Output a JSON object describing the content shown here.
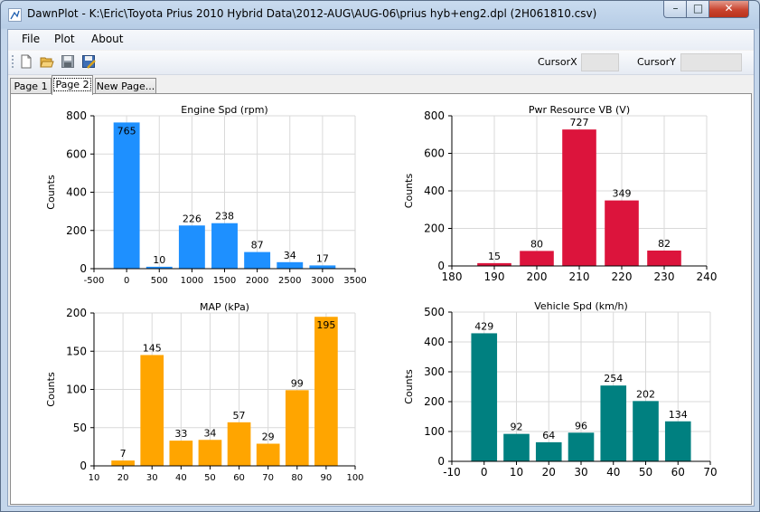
{
  "window": {
    "title": "DawnPlot - K:\\Eric\\Toyota Prius 2010 Hybrid Data\\2012-AUG\\AUG-06\\prius hyb+eng2.dpl (2H061810.csv)",
    "min_glyph": "–",
    "max_glyph": "□",
    "close_glyph": "✕"
  },
  "menu": {
    "file": "File",
    "plot": "Plot",
    "about": "About"
  },
  "toolbar": {
    "icons": [
      "new-file-icon",
      "open-folder-icon",
      "save-disk-icon",
      "save-as-icon"
    ],
    "cursorx_label": "CursorX",
    "cursorx_value": "",
    "cursory_label": "CursorY",
    "cursory_value": ""
  },
  "tabs": {
    "page1": "Page 1",
    "page2": "Page 2",
    "newpage": "New Page...",
    "active": "page2"
  },
  "chart_data": [
    {
      "type": "bar",
      "title": "Engine Spd (rpm)",
      "ylabel": "Counts",
      "color": "#1e90ff",
      "x": [
        0,
        500,
        1000,
        1500,
        2000,
        2500,
        3000
      ],
      "values": [
        765,
        10,
        226,
        238,
        87,
        34,
        17
      ],
      "bar_width": 400,
      "xlim": [
        -500,
        3500
      ],
      "ylim": [
        0,
        800
      ],
      "xticks": [
        -500,
        0,
        500,
        1000,
        1500,
        2000,
        2500,
        3000,
        3500
      ],
      "yticks": [
        0,
        200,
        400,
        600,
        800
      ],
      "grid": true
    },
    {
      "type": "bar",
      "title": "Pwr Resource VB (V)",
      "ylabel": "Counts",
      "color": "#dc143c",
      "x": [
        190,
        200,
        210,
        220,
        230
      ],
      "values": [
        15,
        80,
        727,
        349,
        82
      ],
      "bar_width": 8,
      "xlim": [
        180,
        240
      ],
      "ylim": [
        0,
        800
      ],
      "xticks": [
        180,
        190,
        200,
        210,
        220,
        230,
        240
      ],
      "yticks": [
        0,
        200,
        400,
        600,
        800
      ],
      "grid": true
    },
    {
      "type": "bar",
      "title": "MAP (kPa)",
      "ylabel": "Counts",
      "color": "#ffa500",
      "x": [
        20,
        30,
        40,
        50,
        60,
        70,
        80,
        90
      ],
      "values": [
        7,
        145,
        33,
        34,
        57,
        29,
        99,
        195
      ],
      "bar_width": 8,
      "xlim": [
        10,
        100
      ],
      "ylim": [
        0,
        200
      ],
      "xticks": [
        10,
        20,
        30,
        40,
        50,
        60,
        70,
        80,
        90,
        100
      ],
      "yticks": [
        0,
        50,
        100,
        150,
        200
      ],
      "grid": true
    },
    {
      "type": "bar",
      "title": "Vehicle Spd (km/h)",
      "ylabel": "Counts",
      "color": "#008080",
      "x": [
        0,
        10,
        20,
        30,
        40,
        50,
        60
      ],
      "values": [
        429,
        92,
        64,
        96,
        254,
        202,
        134
      ],
      "bar_width": 8,
      "xlim": [
        -10,
        70
      ],
      "ylim": [
        0,
        500
      ],
      "xticks": [
        -10,
        0,
        10,
        20,
        30,
        40,
        50,
        60,
        70
      ],
      "yticks": [
        0,
        100,
        200,
        300,
        400,
        500
      ],
      "grid": true
    }
  ]
}
